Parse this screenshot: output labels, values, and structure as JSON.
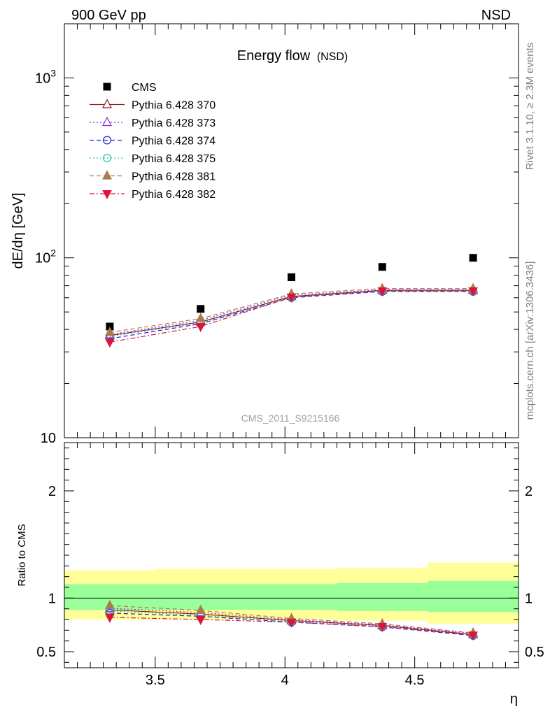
{
  "header": {
    "left": "900 GeV pp",
    "right": "NSD"
  },
  "side_labels": {
    "rivet": "Rivet 3.1.10, ≥ 2.3M events",
    "mcplots": "mcplots.cern.ch [arXiv:1306.3436]"
  },
  "chart_data": [
    {
      "type": "scatter",
      "title": "Energy flow",
      "title_suffix": "(NSD)",
      "xlabel": "η",
      "ylabel": "dE/dη [GeV]",
      "yscale": "log",
      "xlim": [
        3.15,
        4.9
      ],
      "ylim": [
        10,
        2000
      ],
      "y_tick_labels": [
        "10",
        "10",
        "10"
      ],
      "y_tick_exponents": [
        "",
        "2",
        "3"
      ],
      "y_tick_values": [
        10,
        100,
        1000
      ],
      "legend_position": "top-left",
      "watermark": "CMS_2011_S9215166",
      "x": [
        3.325,
        3.675,
        4.025,
        4.375,
        4.725
      ],
      "series": [
        {
          "name": "CMS",
          "color": "#000000",
          "marker": "square-filled",
          "line": "none",
          "values": [
            41.5,
            52,
            78,
            89,
            100
          ]
        },
        {
          "name": "Pythia 6.428 370",
          "color": "#8b1a1a",
          "marker": "triangle-up-open",
          "line": "solid",
          "values": [
            37,
            44,
            61,
            66,
            66
          ]
        },
        {
          "name": "Pythia 6.428 373",
          "color": "#8a2be2",
          "marker": "triangle-up-open",
          "line": "dotted",
          "values": [
            37.5,
            45,
            62,
            66.5,
            66.5
          ]
        },
        {
          "name": "Pythia 6.428 374",
          "color": "#1f1fdd",
          "marker": "circle-open",
          "line": "dashed",
          "values": [
            35.5,
            43,
            60,
            65,
            65
          ]
        },
        {
          "name": "Pythia 6.428 375",
          "color": "#20c8b0",
          "marker": "circle-open",
          "line": "dotted",
          "values": [
            36.5,
            43.5,
            60.5,
            65.5,
            65.5
          ]
        },
        {
          "name": "Pythia 6.428 381",
          "color": "#a87c4f",
          "marker": "triangle-up-filled",
          "line": "dashed",
          "values": [
            38.5,
            46,
            63,
            67.5,
            67.5
          ]
        },
        {
          "name": "Pythia 6.428 382",
          "color": "#dc143c",
          "marker": "triangle-down-filled",
          "line": "dashdot",
          "values": [
            34,
            41.5,
            60.5,
            65.5,
            65.5
          ]
        }
      ]
    },
    {
      "type": "scatter",
      "ylabel": "Ratio to CMS",
      "xlabel": "η",
      "xlim": [
        3.15,
        4.9
      ],
      "ylim": [
        0.35,
        2.45
      ],
      "y_tick_labels": [
        "0.5",
        "1",
        "2"
      ],
      "y_tick_values": [
        0.5,
        1,
        2
      ],
      "x_tick_labels": [
        "3.5",
        "4",
        "4.5"
      ],
      "x_tick_values": [
        3.5,
        4,
        4.5
      ],
      "x": [
        3.325,
        3.675,
        4.025,
        4.375,
        4.725
      ],
      "bin_edges": [
        3.15,
        3.5,
        3.85,
        4.2,
        4.55,
        4.9
      ],
      "bands": {
        "yellow_low": [
          0.8,
          0.8,
          0.8,
          0.79,
          0.76
        ],
        "yellow_high": [
          1.26,
          1.27,
          1.27,
          1.28,
          1.33
        ],
        "green_low": [
          0.89,
          0.89,
          0.89,
          0.88,
          0.87
        ],
        "green_high": [
          1.13,
          1.13,
          1.13,
          1.14,
          1.16
        ],
        "yellow_color": "#ffff99",
        "green_color": "#99ff99"
      },
      "series": [
        {
          "name": "Pythia 6.428 370",
          "values": [
            0.89,
            0.85,
            0.79,
            0.745,
            0.66
          ]
        },
        {
          "name": "Pythia 6.428 373",
          "values": [
            0.905,
            0.865,
            0.8,
            0.75,
            0.67
          ]
        },
        {
          "name": "Pythia 6.428 374",
          "values": [
            0.86,
            0.83,
            0.775,
            0.73,
            0.65
          ]
        },
        {
          "name": "Pythia 6.428 375",
          "values": [
            0.88,
            0.84,
            0.78,
            0.735,
            0.655
          ]
        },
        {
          "name": "Pythia 6.428 381",
          "values": [
            0.93,
            0.885,
            0.81,
            0.76,
            0.675
          ]
        },
        {
          "name": "Pythia 6.428 382",
          "values": [
            0.82,
            0.8,
            0.775,
            0.735,
            0.655
          ]
        }
      ]
    }
  ]
}
